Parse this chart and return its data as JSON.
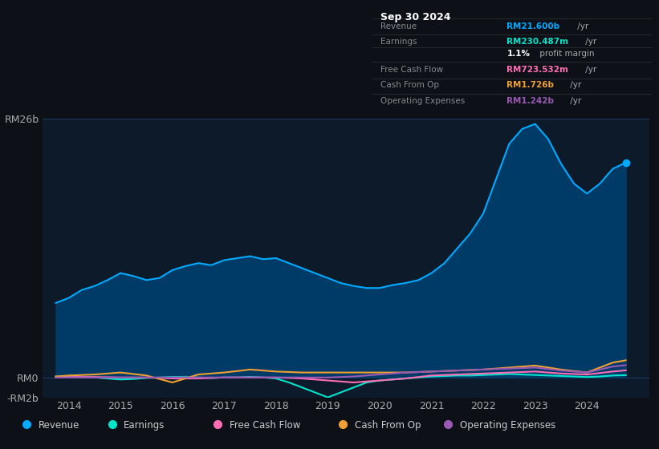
{
  "bg_color": "#0d1117",
  "plot_bg_color": "#0d1a2a",
  "grid_color": "#1e3a5f",
  "ylim": [
    -2000000000.0,
    26000000000.0
  ],
  "yticks": [
    26000000000.0,
    0,
    -2000000000.0
  ],
  "ytick_labels": [
    "RM26b",
    "RM0",
    "-RM2b"
  ],
  "xlim": [
    2013.5,
    2025.2
  ],
  "xticks": [
    2014,
    2015,
    2016,
    2017,
    2018,
    2019,
    2020,
    2021,
    2022,
    2023,
    2024
  ],
  "legend": [
    {
      "label": "Revenue",
      "color": "#00aaff"
    },
    {
      "label": "Earnings",
      "color": "#00e5cc"
    },
    {
      "label": "Free Cash Flow",
      "color": "#ff6eb4"
    },
    {
      "label": "Cash From Op",
      "color": "#f0a030"
    },
    {
      "label": "Operating Expenses",
      "color": "#9b59b6"
    }
  ],
  "revenue_color": "#00aaff",
  "revenue_fill_color": "#003d6b",
  "earnings_color": "#00e5cc",
  "fcf_color": "#ff6eb4",
  "cashop_color": "#f0a030",
  "opex_color": "#9b59b6",
  "table_date": "Sep 30 2024",
  "table_rows": [
    {
      "label": "Revenue",
      "value": "RM21.600b",
      "unit": " /yr",
      "value_color": "#00aaff"
    },
    {
      "label": "Earnings",
      "value": "RM230.487m",
      "unit": " /yr",
      "value_color": "#00e5cc"
    },
    {
      "label": "",
      "value": "1.1%",
      "unit": " profit margin",
      "value_color": "#ffffff"
    },
    {
      "label": "Free Cash Flow",
      "value": "RM723.532m",
      "unit": " /yr",
      "value_color": "#ff6eb4"
    },
    {
      "label": "Cash From Op",
      "value": "RM1.726b",
      "unit": " /yr",
      "value_color": "#f0a030"
    },
    {
      "label": "Operating Expenses",
      "value": "RM1.242b",
      "unit": " /yr",
      "value_color": "#9b59b6"
    }
  ],
  "revenue_x": [
    2013.75,
    2014.0,
    2014.25,
    2014.5,
    2014.75,
    2015.0,
    2015.25,
    2015.5,
    2015.75,
    2016.0,
    2016.25,
    2016.5,
    2016.75,
    2017.0,
    2017.25,
    2017.5,
    2017.75,
    2018.0,
    2018.25,
    2018.5,
    2018.75,
    2019.0,
    2019.25,
    2019.5,
    2019.75,
    2020.0,
    2020.25,
    2020.5,
    2020.75,
    2021.0,
    2021.25,
    2021.5,
    2021.75,
    2022.0,
    2022.25,
    2022.5,
    2022.75,
    2023.0,
    2023.25,
    2023.5,
    2023.75,
    2024.0,
    2024.25,
    2024.5,
    2024.75
  ],
  "revenue_y": [
    7500000000.0,
    8000000000.0,
    8800000000.0,
    9200000000.0,
    9800000000.0,
    10500000000.0,
    10200000000.0,
    9800000000.0,
    10000000000.0,
    10800000000.0,
    11200000000.0,
    11500000000.0,
    11300000000.0,
    11800000000.0,
    12000000000.0,
    12200000000.0,
    11900000000.0,
    12000000000.0,
    11500000000.0,
    11000000000.0,
    10500000000.0,
    10000000000.0,
    9500000000.0,
    9200000000.0,
    9000000000.0,
    9000000000.0,
    9300000000.0,
    9500000000.0,
    9800000000.0,
    10500000000.0,
    11500000000.0,
    13000000000.0,
    14500000000.0,
    16500000000.0,
    20000000000.0,
    23500000000.0,
    25000000000.0,
    25500000000.0,
    24000000000.0,
    21500000000.0,
    19500000000.0,
    18500000000.0,
    19500000000.0,
    21000000000.0,
    21600000000.0
  ],
  "earnings_x": [
    2013.75,
    2014.0,
    2014.25,
    2014.5,
    2014.75,
    2015.0,
    2015.25,
    2015.5,
    2015.75,
    2016.0,
    2016.25,
    2016.5,
    2016.75,
    2017.0,
    2017.25,
    2017.5,
    2017.75,
    2018.0,
    2018.25,
    2018.5,
    2018.75,
    2019.0,
    2019.25,
    2019.5,
    2019.75,
    2020.0,
    2020.25,
    2020.5,
    2020.75,
    2021.0,
    2021.25,
    2021.5,
    2021.75,
    2022.0,
    2022.25,
    2022.5,
    2022.75,
    2023.0,
    2023.25,
    2023.5,
    2023.75,
    2024.0,
    2024.25,
    2024.5,
    2024.75
  ],
  "earnings_y": [
    100000000.0,
    50000000.0,
    0.0,
    0.0,
    -100000000.0,
    -200000000.0,
    -150000000.0,
    -50000000.0,
    0.0,
    50000000.0,
    50000000.0,
    0.0,
    -50000000.0,
    0.0,
    0.0,
    50000000.0,
    0.0,
    -100000000.0,
    -500000000.0,
    -1000000000.0,
    -1500000000.0,
    -2000000000.0,
    -1500000000.0,
    -1000000000.0,
    -500000000.0,
    -300000000.0,
    -200000000.0,
    -100000000.0,
    0.0,
    100000000.0,
    150000000.0,
    200000000.0,
    200000000.0,
    250000000.0,
    300000000.0,
    350000000.0,
    300000000.0,
    250000000.0,
    200000000.0,
    150000000.0,
    100000000.0,
    50000000.0,
    100000000.0,
    200000000.0,
    230000000.0
  ],
  "fcf_x": [
    2013.75,
    2014.0,
    2014.5,
    2015.0,
    2015.5,
    2016.0,
    2016.5,
    2017.0,
    2017.5,
    2018.0,
    2018.5,
    2019.0,
    2019.5,
    2020.0,
    2020.5,
    2021.0,
    2021.5,
    2022.0,
    2022.5,
    2023.0,
    2023.5,
    2024.0,
    2024.5,
    2024.75
  ],
  "fcf_y": [
    0.0,
    50000000.0,
    50000000.0,
    0.0,
    0.0,
    -100000000.0,
    -100000000.0,
    0.0,
    0.0,
    0.0,
    -100000000.0,
    -300000000.0,
    -500000000.0,
    -300000000.0,
    -100000000.0,
    200000000.0,
    300000000.0,
    400000000.0,
    500000000.0,
    600000000.0,
    400000000.0,
    300000000.0,
    600000000.0,
    720000000.0
  ],
  "cashop_x": [
    2013.75,
    2014.0,
    2014.5,
    2015.0,
    2015.5,
    2016.0,
    2016.5,
    2017.0,
    2017.5,
    2018.0,
    2018.5,
    2019.0,
    2019.5,
    2020.0,
    2020.5,
    2021.0,
    2021.5,
    2022.0,
    2022.5,
    2023.0,
    2023.5,
    2024.0,
    2024.5,
    2024.75
  ],
  "cashop_y": [
    100000000.0,
    200000000.0,
    300000000.0,
    500000000.0,
    200000000.0,
    -500000000.0,
    300000000.0,
    500000000.0,
    800000000.0,
    600000000.0,
    500000000.0,
    500000000.0,
    500000000.0,
    500000000.0,
    500000000.0,
    600000000.0,
    700000000.0,
    800000000.0,
    1000000000.0,
    1200000000.0,
    800000000.0,
    500000000.0,
    1500000000.0,
    1726000000.0
  ],
  "opex_x": [
    2013.75,
    2014.0,
    2014.5,
    2015.0,
    2015.5,
    2016.0,
    2016.5,
    2017.0,
    2017.5,
    2018.0,
    2018.5,
    2019.0,
    2019.5,
    2020.0,
    2020.5,
    2021.0,
    2021.5,
    2022.0,
    2022.5,
    2023.0,
    2023.5,
    2024.0,
    2024.5,
    2024.75
  ],
  "opex_y": [
    0.0,
    0.0,
    0.0,
    0.0,
    0.0,
    0.0,
    0.0,
    0.0,
    0.0,
    0.0,
    0.0,
    0.0,
    100000000.0,
    300000000.0,
    500000000.0,
    600000000.0,
    700000000.0,
    800000000.0,
    900000000.0,
    1000000000.0,
    700000000.0,
    500000000.0,
    1100000000.0,
    1242000000.0
  ]
}
